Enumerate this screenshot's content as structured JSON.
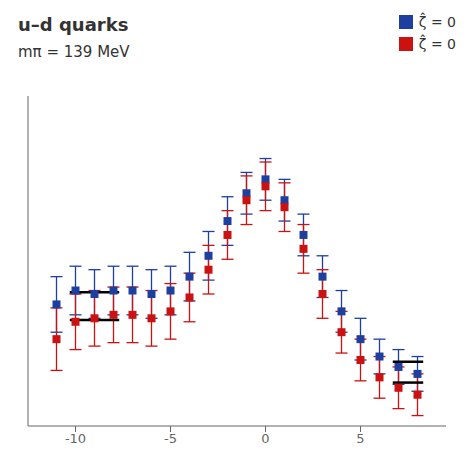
{
  "chart_data": {
    "type": "scatter",
    "title": "u–d quarks",
    "subtitle": "mπ = 139 MeV",
    "x": [
      -11,
      -10,
      -9,
      -8,
      -7,
      -6,
      -5,
      -4,
      -3,
      -2,
      -1,
      0,
      1,
      2,
      3,
      4,
      5,
      6,
      7,
      8
    ],
    "series": [
      {
        "name": "ζ̂ = 0",
        "color": "#1c3fa0",
        "marker": "square",
        "values": [
          0.3,
          0.34,
          0.33,
          0.34,
          0.34,
          0.33,
          0.34,
          0.38,
          0.44,
          0.54,
          0.62,
          0.66,
          0.6,
          0.5,
          0.38,
          0.28,
          0.2,
          0.15,
          0.12,
          0.1
        ],
        "yerr": [
          0.08,
          0.07,
          0.07,
          0.07,
          0.07,
          0.07,
          0.07,
          0.07,
          0.07,
          0.07,
          0.06,
          0.06,
          0.06,
          0.06,
          0.06,
          0.06,
          0.06,
          0.05,
          0.05,
          0.05
        ]
      },
      {
        "name": "ζ̂ = 0",
        "color": "#cc1111",
        "marker": "square",
        "values": [
          0.2,
          0.25,
          0.26,
          0.27,
          0.27,
          0.26,
          0.28,
          0.32,
          0.4,
          0.5,
          0.6,
          0.64,
          0.58,
          0.46,
          0.33,
          0.22,
          0.14,
          0.09,
          0.06,
          0.04
        ],
        "yerr": [
          0.09,
          0.08,
          0.08,
          0.08,
          0.08,
          0.08,
          0.08,
          0.07,
          0.07,
          0.07,
          0.07,
          0.07,
          0.07,
          0.07,
          0.07,
          0.06,
          0.06,
          0.06,
          0.06,
          0.06
        ]
      },
      {
        "type": "line",
        "color": "#000000",
        "x": [
          -10.3,
          -7.7
        ],
        "values": [
          0.335,
          0.335
        ]
      },
      {
        "type": "line",
        "color": "#000000",
        "x": [
          -10.3,
          -7.7
        ],
        "values": [
          0.255,
          0.255
        ]
      },
      {
        "type": "line",
        "color": "#000000",
        "x": [
          6.7,
          8.3
        ],
        "values": [
          0.135,
          0.135
        ]
      },
      {
        "type": "line",
        "color": "#000000",
        "x": [
          6.7,
          8.3
        ],
        "values": [
          0.075,
          0.075
        ]
      }
    ],
    "xlim": [
      -12.5,
      9.5
    ],
    "ylim": [
      -0.05,
      0.9
    ],
    "xticks": [
      -10,
      -5,
      0,
      5
    ],
    "yticks": [],
    "grid": false,
    "legend": "upper right",
    "tick_labels": "x"
  }
}
